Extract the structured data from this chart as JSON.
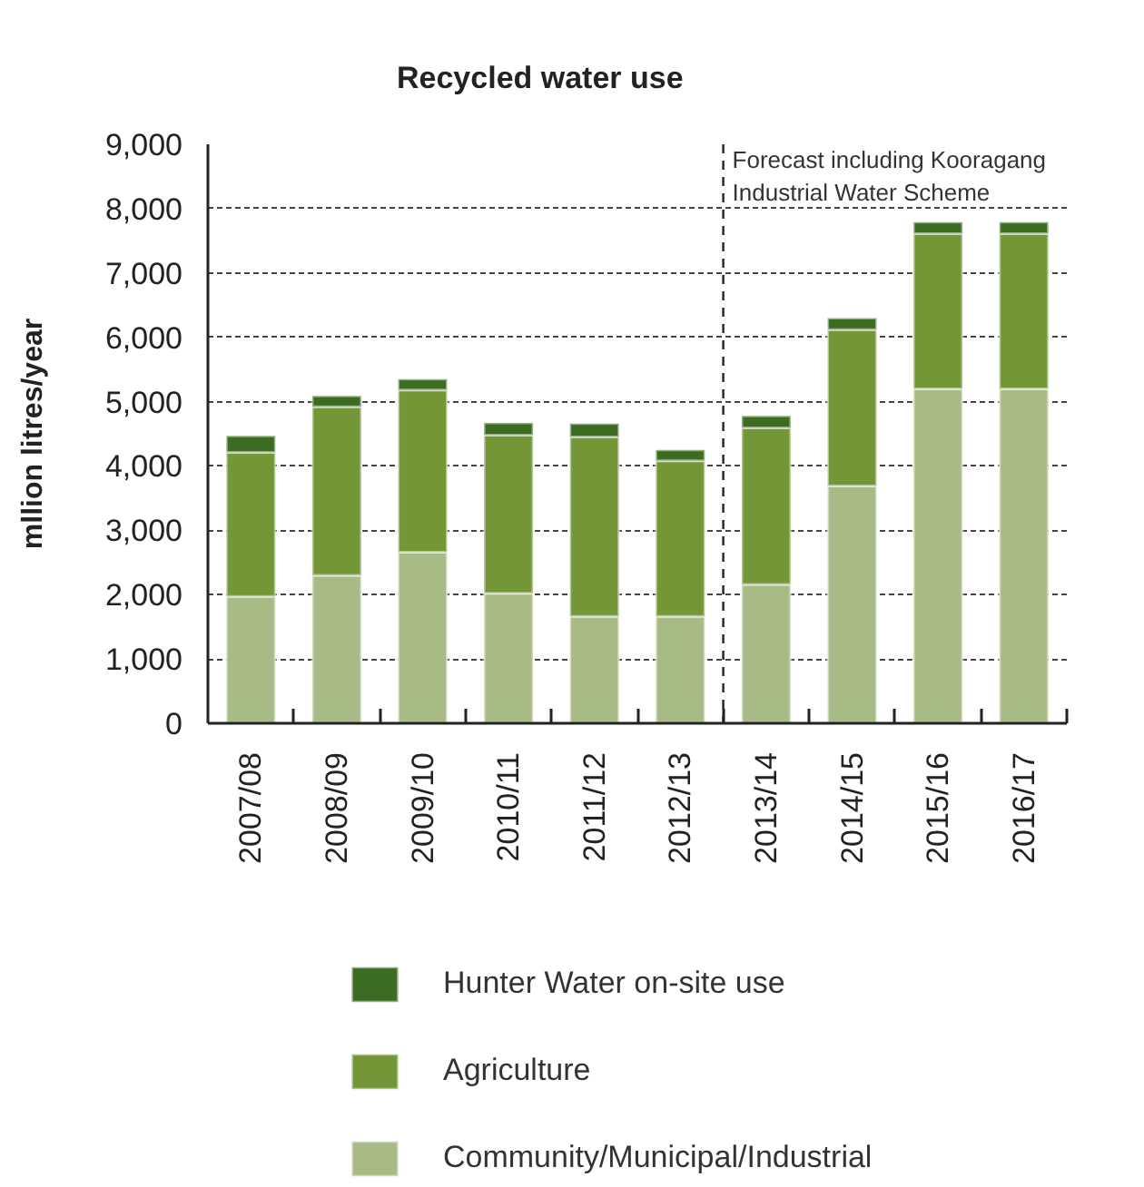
{
  "chart_data": {
    "type": "bar",
    "title": "Recycled water use",
    "ylabel": "mllion litres/year",
    "categories": [
      "2007/08",
      "2008/09",
      "2009/10",
      "2010/11",
      "2011/12",
      "2012/13",
      "2013/14",
      "2014/15",
      "2015/16",
      "2016/17"
    ],
    "stacked": true,
    "series": [
      {
        "name": "Community/Municipal/Industrial",
        "color": "#a8ba85",
        "values": [
          1970,
          2300,
          2660,
          2020,
          1660,
          1660,
          2160,
          3690,
          5200,
          5200
        ]
      },
      {
        "name": "Agriculture",
        "color": "#739637",
        "values": [
          2240,
          2620,
          2520,
          2460,
          2790,
          2420,
          2430,
          2430,
          2410,
          2410
        ]
      },
      {
        "name": "Hunter Water on-site use",
        "color": "#3c6b22",
        "values": [
          260,
          170,
          170,
          190,
          210,
          170,
          190,
          180,
          180,
          180
        ]
      }
    ],
    "ylim": [
      0,
      9000
    ],
    "yticks": [
      0,
      {
        "value": 1000,
        "label": "1,000"
      },
      {
        "value": 2000,
        "label": "2,000"
      },
      {
        "value": 3000,
        "label": "3,000"
      },
      {
        "value": 4000,
        "label": "4,000"
      },
      {
        "value": 5000,
        "label": "5,000"
      },
      {
        "value": 6000,
        "label": "6,000"
      },
      {
        "value": 7000,
        "label": "7,000"
      },
      {
        "value": 8000,
        "label": "8,000"
      },
      {
        "value": 9000,
        "label": "9,000"
      }
    ],
    "grid": "y",
    "legend": "bottom",
    "ref_lines": [
      {
        "axis": "x",
        "value": "2013/14",
        "label": "Forecast including Kooragang Industrial Water Scheme",
        "line_style": "dashed"
      }
    ]
  }
}
